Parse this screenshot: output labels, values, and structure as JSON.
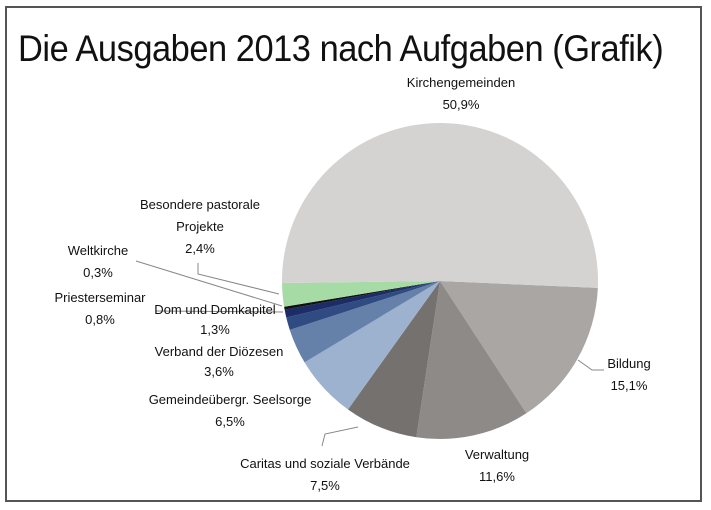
{
  "chart_data": {
    "type": "pie",
    "title": "Die Ausgaben 2013 nach Aufgaben (Grafik)",
    "slices": [
      {
        "label": "Bildung",
        "value": 15.1,
        "value_label": "15,1%",
        "color": "#aaa6a4"
      },
      {
        "label": "Verwaltung",
        "value": 11.6,
        "value_label": "11,6%",
        "color": "#8e8a88"
      },
      {
        "label": "Caritas und soziale Verbände",
        "value": 7.5,
        "value_label": "7,5%",
        "color": "#75716f"
      },
      {
        "label": "Gemeindeübergr. Seelsorge",
        "value": 6.5,
        "value_label": "6,5%",
        "color": "#9db2cf"
      },
      {
        "label": "Verband der Diözesen",
        "value": 3.6,
        "value_label": "3,6%",
        "color": "#6580a9"
      },
      {
        "label": "Dom und Domkapitel",
        "value": 1.3,
        "value_label": "1,3%",
        "color": "#304b82"
      },
      {
        "label": "Priesterseminar",
        "value": 0.8,
        "value_label": "0,8%",
        "color": "#1b2c66"
      },
      {
        "label": "Weltkirche",
        "value": 0.3,
        "value_label": "0,3%",
        "color": "#111111"
      },
      {
        "label": "Besondere pastorale Projekte",
        "value": 2.4,
        "value_label": "2,4%",
        "color": "#a6dba6"
      },
      {
        "label": "Kirchengemeinden",
        "value": 50.9,
        "value_label": "50,9%",
        "color": "#d5d3d1"
      }
    ]
  }
}
